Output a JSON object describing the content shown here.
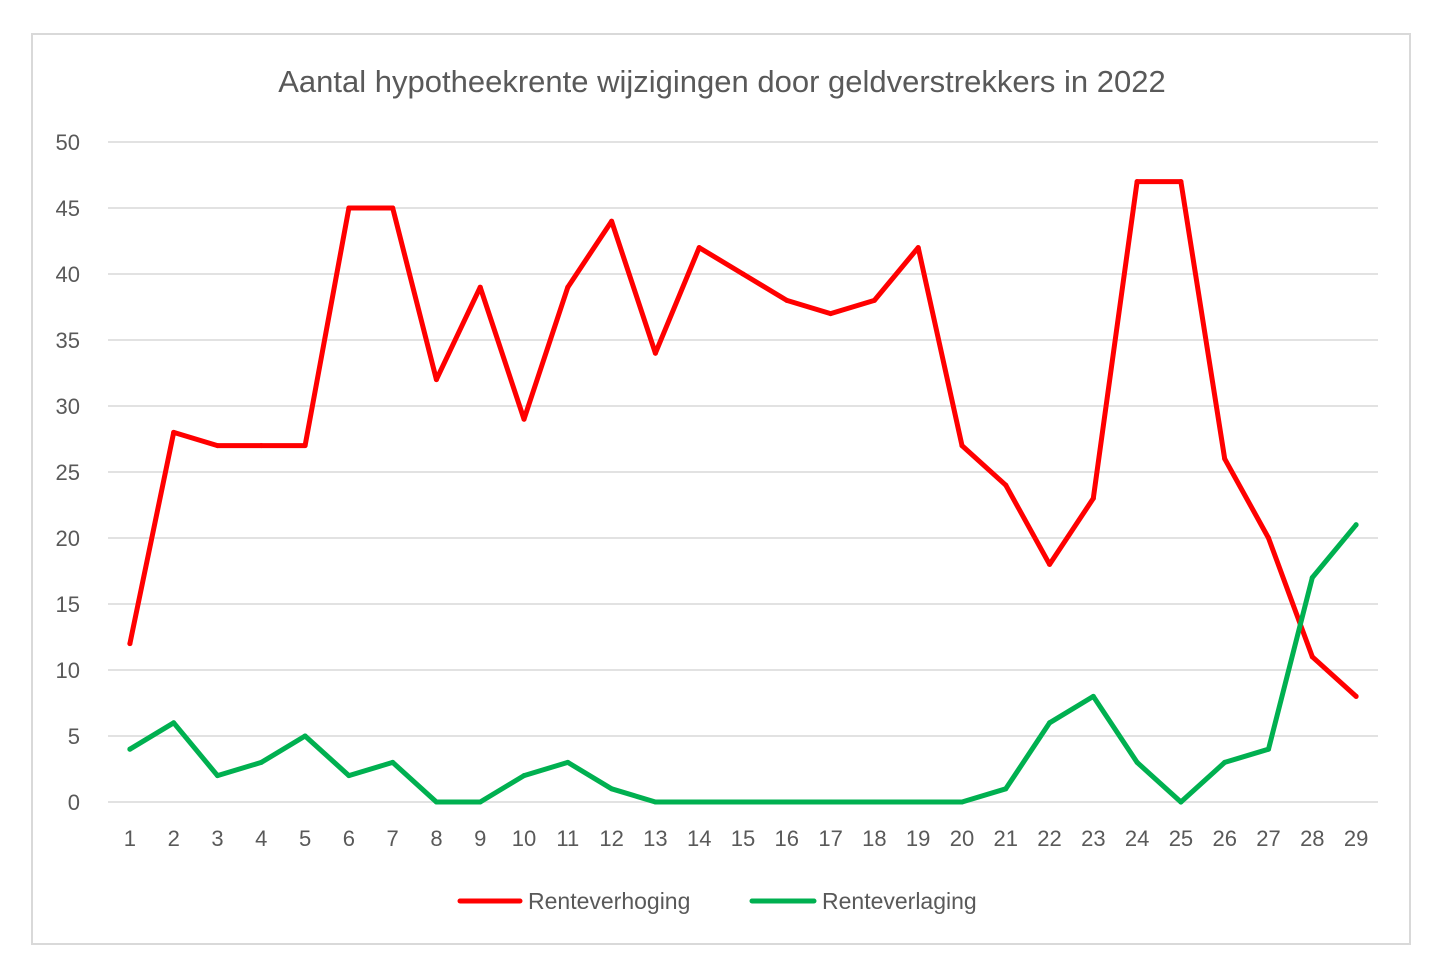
{
  "chart_data": {
    "type": "line",
    "title": "Aantal hypotheekrente wijzigingen door geldverstrekkers in 2022",
    "xlabel": "",
    "ylabel": "",
    "categories": [
      "1",
      "2",
      "3",
      "4",
      "5",
      "6",
      "7",
      "8",
      "9",
      "10",
      "11",
      "12",
      "13",
      "14",
      "15",
      "16",
      "17",
      "18",
      "19",
      "20",
      "21",
      "22",
      "23",
      "24",
      "25",
      "26",
      "27",
      "28",
      "29"
    ],
    "ylim": [
      0,
      50
    ],
    "yticks": [
      0,
      5,
      10,
      15,
      20,
      25,
      30,
      35,
      40,
      45,
      50
    ],
    "grid": true,
    "legend_position": "bottom",
    "series": [
      {
        "name": "Renteverhoging",
        "color": "#ff0000",
        "values": [
          12,
          28,
          27,
          27,
          27,
          45,
          45,
          32,
          39,
          29,
          39,
          44,
          34,
          42,
          40,
          38,
          37,
          38,
          42,
          27,
          24,
          18,
          23,
          47,
          47,
          26,
          20,
          11,
          8
        ]
      },
      {
        "name": "Renteverlaging",
        "color": "#00b050",
        "values": [
          4,
          6,
          2,
          3,
          5,
          2,
          3,
          0,
          0,
          2,
          3,
          1,
          0,
          0,
          0,
          0,
          0,
          0,
          0,
          0,
          1,
          6,
          8,
          3,
          0,
          3,
          4,
          17,
          21
        ]
      }
    ]
  }
}
